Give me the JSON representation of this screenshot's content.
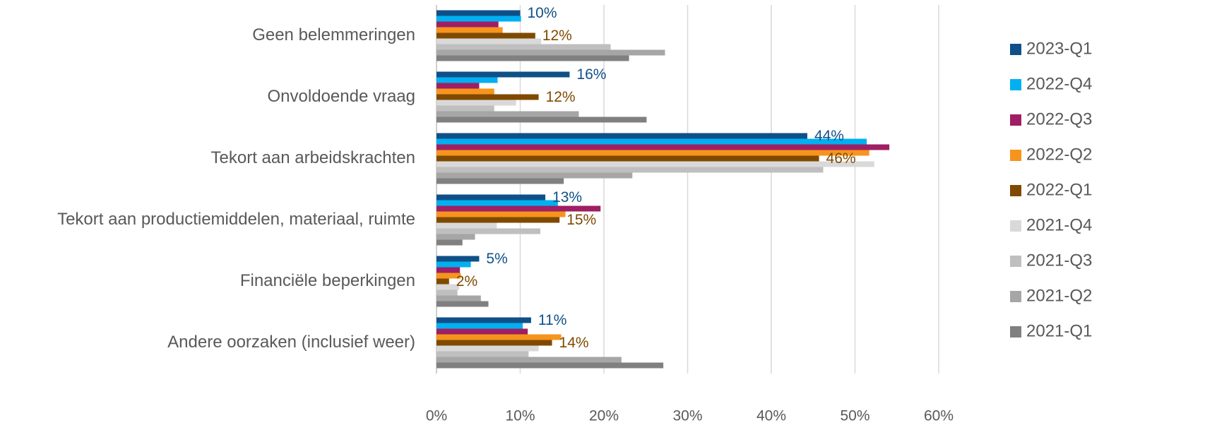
{
  "chart_data": {
    "type": "hbar",
    "categories": [
      "Geen belemmeringen",
      "Onvoldoende vraag",
      "Tekort aan arbeidskrachten",
      "Tekort aan productiemiddelen, materiaal, ruimte",
      "Financiële beperkingen",
      "Andere oorzaken (inclusief weer)"
    ],
    "series": [
      {
        "name": "2023-Q1",
        "color": "#0f5088",
        "values": [
          10.0,
          15.9,
          44.3,
          13.0,
          5.1,
          11.3
        ],
        "value_labels": [
          "10%",
          "16%",
          "44%",
          "13%",
          "5%",
          "11%"
        ]
      },
      {
        "name": "2022-Q4",
        "color": "#00b0f0",
        "values": [
          10.1,
          7.3,
          51.4,
          14.5,
          4.1,
          10.3
        ]
      },
      {
        "name": "2022-Q3",
        "color": "#9e1f63",
        "values": [
          7.4,
          5.1,
          54.1,
          19.6,
          2.8,
          10.9
        ]
      },
      {
        "name": "2022-Q2",
        "color": "#f7941d",
        "values": [
          7.9,
          6.9,
          51.7,
          15.4,
          2.9,
          14.9
        ]
      },
      {
        "name": "2022-Q1",
        "color": "#7f4a00",
        "values": [
          11.8,
          12.2,
          45.7,
          14.7,
          1.5,
          13.8
        ],
        "value_labels": [
          "12%",
          "12%",
          "46%",
          "15%",
          "2%",
          "14%"
        ]
      },
      {
        "name": "2021-Q4",
        "color": "#d9d9d9",
        "values": [
          12.5,
          9.5,
          52.3,
          7.2,
          2.7,
          12.2
        ]
      },
      {
        "name": "2021-Q3",
        "color": "#bfbfbf",
        "values": [
          20.8,
          6.9,
          46.2,
          12.4,
          2.5,
          11.0
        ]
      },
      {
        "name": "2021-Q2",
        "color": "#a6a6a6",
        "values": [
          27.3,
          17.0,
          23.4,
          4.6,
          5.3,
          22.1
        ]
      },
      {
        "name": "2021-Q1",
        "color": "#808080",
        "values": [
          23.0,
          25.1,
          15.2,
          3.1,
          6.2,
          27.1
        ]
      }
    ],
    "xlim": [
      0,
      60
    ],
    "xticks": [
      {
        "value": 0,
        "label": "0%"
      },
      {
        "value": 10,
        "label": "10%"
      },
      {
        "value": 20,
        "label": "20%"
      },
      {
        "value": 30,
        "label": "30%"
      },
      {
        "value": 40,
        "label": "40%"
      },
      {
        "value": 50,
        "label": "50%"
      },
      {
        "value": 60,
        "label": "60%"
      }
    ],
    "grid": true,
    "legend": "right"
  }
}
